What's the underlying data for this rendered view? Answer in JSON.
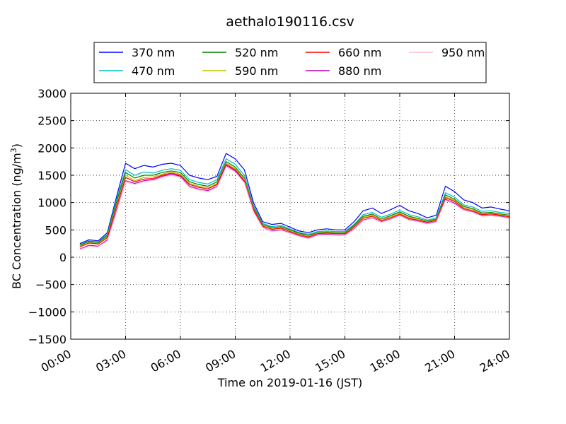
{
  "chart_data": {
    "type": "line",
    "title": "aethalo190116.csv",
    "xlabel": "Time on 2019-01-16 (JST)",
    "ylabel": "BC Concentration (ng/m³)",
    "ylabel_parts": {
      "prefix": "BC Concentration (ng/m",
      "sup": "3",
      "suffix": ")"
    },
    "xlim": [
      "00:00",
      "24:00"
    ],
    "ylim": [
      -1500,
      3000
    ],
    "xticks": [
      "00:00",
      "03:00",
      "06:00",
      "09:00",
      "12:00",
      "15:00",
      "18:00",
      "21:00",
      "24:00"
    ],
    "yticks": [
      -1500,
      -1000,
      -500,
      0,
      500,
      1000,
      1500,
      2000,
      2500,
      3000
    ],
    "grid": true,
    "legend_position": "top, above plot",
    "x": [
      "00:30",
      "01:00",
      "01:30",
      "02:00",
      "02:30",
      "03:00",
      "03:30",
      "04:00",
      "04:30",
      "05:00",
      "05:30",
      "06:00",
      "06:30",
      "07:00",
      "07:30",
      "08:00",
      "08:30",
      "09:00",
      "09:30",
      "10:00",
      "10:30",
      "11:00",
      "11:30",
      "12:00",
      "12:30",
      "13:00",
      "13:30",
      "14:00",
      "14:30",
      "15:00",
      "15:30",
      "16:00",
      "16:30",
      "17:00",
      "17:30",
      "18:00",
      "18:30",
      "19:00",
      "19:30",
      "20:00",
      "20:30",
      "21:00",
      "21:30",
      "22:00",
      "22:30",
      "23:00",
      "23:30",
      "24:00"
    ],
    "series": [
      {
        "name": "370 nm",
        "color": "#0000ff",
        "values": [
          250,
          320,
          300,
          450,
          1100,
          1720,
          1620,
          1680,
          1650,
          1700,
          1720,
          1680,
          1500,
          1450,
          1420,
          1480,
          1900,
          1800,
          1600,
          1000,
          650,
          600,
          620,
          550,
          480,
          450,
          500,
          520,
          500,
          500,
          650,
          850,
          900,
          800,
          870,
          950,
          850,
          800,
          720,
          770,
          1300,
          1200,
          1050,
          1000,
          900,
          920,
          880,
          850
        ]
      },
      {
        "name": "470 nm",
        "color": "#00bfbf",
        "values": [
          230,
          300,
          280,
          420,
          1050,
          1600,
          1500,
          1560,
          1540,
          1590,
          1620,
          1590,
          1420,
          1370,
          1340,
          1420,
          1800,
          1700,
          1500,
          950,
          620,
          560,
          580,
          520,
          450,
          420,
          470,
          480,
          470,
          470,
          600,
          780,
          820,
          730,
          790,
          860,
          780,
          740,
          680,
          720,
          1180,
          1100,
          960,
          920,
          840,
          850,
          820,
          800
        ]
      },
      {
        "name": "520 nm",
        "color": "#008000",
        "values": [
          220,
          290,
          270,
          400,
          1000,
          1550,
          1450,
          1500,
          1500,
          1550,
          1580,
          1550,
          1380,
          1330,
          1300,
          1380,
          1750,
          1650,
          1450,
          920,
          600,
          540,
          560,
          500,
          440,
          400,
          450,
          460,
          450,
          450,
          580,
          750,
          790,
          700,
          760,
          830,
          750,
          710,
          660,
          700,
          1140,
          1060,
          930,
          890,
          810,
          820,
          790,
          770
        ]
      },
      {
        "name": "590 nm",
        "color": "#bfbf00",
        "values": [
          200,
          270,
          250,
          380,
          950,
          1500,
          1400,
          1460,
          1470,
          1520,
          1560,
          1520,
          1350,
          1300,
          1270,
          1350,
          1720,
          1620,
          1430,
          900,
          580,
          520,
          540,
          480,
          420,
          380,
          440,
          450,
          440,
          440,
          560,
          730,
          770,
          690,
          740,
          810,
          730,
          700,
          650,
          680,
          1110,
          1040,
          910,
          870,
          790,
          800,
          780,
          760
        ]
      },
      {
        "name": "660 nm",
        "color": "#ff0000",
        "values": [
          190,
          260,
          240,
          360,
          920,
          1460,
          1380,
          1430,
          1440,
          1500,
          1540,
          1500,
          1330,
          1280,
          1250,
          1330,
          1700,
          1600,
          1400,
          880,
          570,
          510,
          530,
          470,
          410,
          370,
          430,
          440,
          430,
          430,
          550,
          710,
          750,
          670,
          720,
          790,
          710,
          680,
          640,
          670,
          1090,
          1020,
          890,
          850,
          780,
          790,
          770,
          740
        ]
      },
      {
        "name": "880 nm",
        "color": "#bf00bf",
        "values": [
          150,
          220,
          200,
          320,
          850,
          1400,
          1350,
          1400,
          1420,
          1480,
          1520,
          1480,
          1300,
          1250,
          1220,
          1300,
          1680,
          1580,
          1380,
          850,
          550,
          480,
          500,
          450,
          390,
          350,
          410,
          420,
          410,
          410,
          520,
          680,
          720,
          650,
          700,
          770,
          690,
          660,
          620,
          650,
          1060,
          990,
          870,
          830,
          760,
          770,
          750,
          720
        ]
      },
      {
        "name": "950 nm",
        "color": "#ffc0cb",
        "values": [
          140,
          200,
          190,
          300,
          820,
          1380,
          1330,
          1380,
          1400,
          1460,
          1500,
          1460,
          1280,
          1230,
          1200,
          1280,
          1650,
          1560,
          1360,
          830,
          540,
          470,
          490,
          440,
          380,
          340,
          400,
          410,
          400,
          400,
          510,
          670,
          710,
          640,
          690,
          760,
          680,
          650,
          610,
          640,
          1040,
          970,
          860,
          820,
          750,
          760,
          740,
          710
        ]
      }
    ]
  }
}
